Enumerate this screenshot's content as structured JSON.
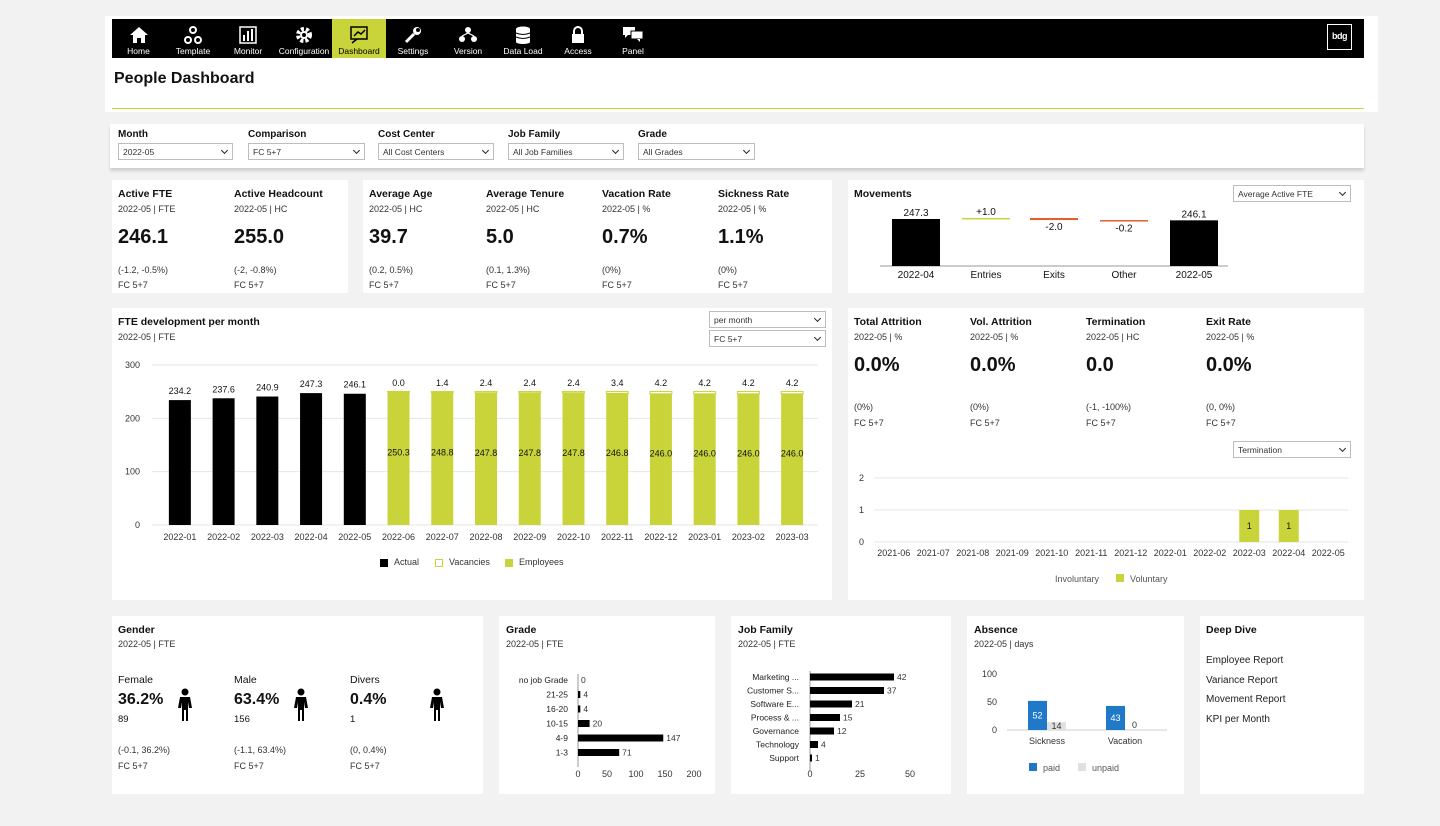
{
  "nav": {
    "items": [
      {
        "label": "Home",
        "icon": "home-icon"
      },
      {
        "label": "Template",
        "icon": "template-icon"
      },
      {
        "label": "Monitor",
        "icon": "monitor-icon"
      },
      {
        "label": "Configuration",
        "icon": "gear-icon"
      },
      {
        "label": "Dashboard",
        "icon": "dashboard-icon",
        "active": true
      },
      {
        "label": "Settings",
        "icon": "wrench-icon"
      },
      {
        "label": "Version",
        "icon": "version-icon"
      },
      {
        "label": "Data Load",
        "icon": "database-icon"
      },
      {
        "label": "Access",
        "icon": "lock-icon"
      },
      {
        "label": "Panel",
        "icon": "chat-icon"
      }
    ],
    "logo_text": "bdg",
    "accent": "#c8d43a"
  },
  "page_title": "People Dashboard",
  "filters": [
    {
      "label": "Month",
      "value": "2022-05"
    },
    {
      "label": "Comparison",
      "value": "FC 5+7"
    },
    {
      "label": "Cost Center",
      "value": "All Cost Centers"
    },
    {
      "label": "Job Family",
      "value": "All Job Families"
    },
    {
      "label": "Grade",
      "value": "All Grades"
    }
  ],
  "kpis": [
    {
      "title": "Active FTE",
      "sub": "2022-05 | FTE",
      "value": "246.1",
      "delta": "(-1.2, -0.5%)",
      "fc": "FC 5+7"
    },
    {
      "title": "Active Headcount",
      "sub": "2022-05 | HC",
      "value": "255.0",
      "delta": "(-2, -0.8%)",
      "fc": "FC 5+7"
    },
    {
      "title": "Average Age",
      "sub": "2022-05 | HC",
      "value": "39.7",
      "delta": "(0.2, 0.5%)",
      "fc": "FC 5+7"
    },
    {
      "title": "Average Tenure",
      "sub": "2022-05 | HC",
      "value": "5.0",
      "delta": "(0.1, 1.3%)",
      "fc": "FC 5+7"
    },
    {
      "title": "Vacation Rate",
      "sub": "2022-05 | %",
      "value": "0.7%",
      "delta": "(0%)",
      "fc": "FC 5+7"
    },
    {
      "title": "Sickness Rate",
      "sub": "2022-05 | %",
      "value": "1.1%",
      "delta": "(0%)",
      "fc": "FC 5+7"
    }
  ],
  "movements": {
    "title": "Movements",
    "select": "Average Active FTE",
    "chart_data": {
      "type": "bar",
      "categories": [
        "2022-04",
        "Entries",
        "Exits",
        "Other",
        "2022-05"
      ],
      "values": [
        247.3,
        1.0,
        -2.0,
        -0.2,
        246.1
      ],
      "labels": [
        "247.3",
        "+1.0",
        "-2.0",
        "-0.2",
        "246.1"
      ]
    }
  },
  "fte_dev": {
    "title": "FTE development per month",
    "sub": "2022-05 | FTE",
    "select1": "per month",
    "select2": "FC 5+7",
    "chart_data": {
      "type": "bar",
      "categories": [
        "2022-01",
        "2022-02",
        "2022-03",
        "2022-04",
        "2022-05",
        "2022-06",
        "2022-07",
        "2022-08",
        "2022-09",
        "2022-10",
        "2022-11",
        "2022-12",
        "2023-01",
        "2023-02",
        "2023-03"
      ],
      "yticks": [
        0,
        100,
        200,
        300
      ],
      "ylim": [
        0,
        300
      ],
      "series": [
        {
          "name": "Actual",
          "values": [
            234.2,
            237.6,
            240.9,
            247.3,
            246.1,
            null,
            null,
            null,
            null,
            null,
            null,
            null,
            null,
            null,
            null
          ]
        },
        {
          "name": "Vacancies",
          "values": [
            null,
            null,
            null,
            null,
            null,
            0.0,
            1.4,
            2.4,
            2.4,
            2.4,
            3.4,
            4.2,
            4.2,
            4.2,
            4.2
          ]
        },
        {
          "name": "Employees",
          "values": [
            null,
            null,
            null,
            null,
            null,
            250.3,
            248.8,
            247.8,
            247.8,
            247.8,
            246.8,
            246.0,
            246.0,
            246.0,
            246.0
          ]
        }
      ],
      "legend": [
        "Actual",
        "Vacancies",
        "Employees"
      ]
    }
  },
  "attrition": [
    {
      "title": "Total Attrition",
      "sub": "2022-05 | %",
      "value": "0.0%",
      "delta": "(0%)",
      "fc": "FC 5+7"
    },
    {
      "title": "Vol. Attrition",
      "sub": "2022-05 | %",
      "value": "0.0%",
      "delta": "(0%)",
      "fc": "FC 5+7"
    },
    {
      "title": "Termination",
      "sub": "2022-05 | HC",
      "value": "0.0",
      "delta": "(-1, -100%)",
      "fc": "FC 5+7"
    },
    {
      "title": "Exit Rate",
      "sub": "2022-05 | %",
      "value": "0.0%",
      "delta": "(0, 0%)",
      "fc": "FC 5+7"
    }
  ],
  "termination": {
    "select": "Termination",
    "chart_data": {
      "type": "bar",
      "categories": [
        "2021-06",
        "2021-07",
        "2021-08",
        "2021-09",
        "2021-10",
        "2021-11",
        "2021-12",
        "2022-01",
        "2022-02",
        "2022-03",
        "2022-04",
        "2022-05"
      ],
      "yticks": [
        0,
        1,
        2
      ],
      "ylim": [
        0,
        2
      ],
      "series": [
        {
          "name": "Involuntary",
          "values": [
            0,
            0,
            0,
            0,
            0,
            0,
            0,
            0,
            0,
            0,
            0,
            0
          ]
        },
        {
          "name": "Voluntary",
          "values": [
            0,
            0,
            0,
            0,
            0,
            0,
            0,
            0,
            0,
            1,
            1,
            0
          ]
        }
      ],
      "legend": [
        "Involuntary",
        "Voluntary"
      ]
    }
  },
  "gender": {
    "title": "Gender",
    "sub": "2022-05 | FTE",
    "items": [
      {
        "label": "Female",
        "pct": "36.2%",
        "n": "89",
        "delta": "(-0.1, 36.2%)",
        "fc": "FC 5+7"
      },
      {
        "label": "Male",
        "pct": "63.4%",
        "n": "156",
        "delta": "(-1.1, 63.4%)",
        "fc": "FC 5+7"
      },
      {
        "label": "Divers",
        "pct": "0.4%",
        "n": "1",
        "delta": "(0, 0.4%)",
        "fc": "FC 5+7"
      }
    ]
  },
  "grade": {
    "title": "Grade",
    "sub": "2022-05 | FTE",
    "chart_data": {
      "type": "bar",
      "orientation": "horizontal",
      "categories": [
        "no job Grade",
        "21-25",
        "16-20",
        "10-15",
        "4-9",
        "1-3"
      ],
      "values": [
        0,
        4,
        4,
        20,
        147,
        71
      ],
      "xticks": [
        0,
        50,
        100,
        150,
        200
      ],
      "xlim": [
        0,
        200
      ]
    }
  },
  "jobfamily": {
    "title": "Job Family",
    "sub": "2022-05 | FTE",
    "chart_data": {
      "type": "bar",
      "orientation": "horizontal",
      "categories": [
        "Marketing ...",
        "Customer S...",
        "Software E...",
        "Process & ...",
        "Governance",
        "Technology",
        "Support"
      ],
      "values": [
        42,
        37,
        21,
        15,
        12,
        4,
        1
      ],
      "xticks": [
        0,
        25,
        50
      ],
      "xlim": [
        0,
        50
      ]
    }
  },
  "absence": {
    "title": "Absence",
    "sub": "2022-05 | days",
    "chart_data": {
      "type": "bar",
      "categories": [
        "Sickness",
        "Vacation"
      ],
      "series": [
        {
          "name": "paid",
          "values": [
            52,
            43
          ]
        },
        {
          "name": "unpaid",
          "values": [
            14,
            0
          ]
        }
      ],
      "yticks": [
        0,
        50,
        100
      ],
      "ylim": [
        0,
        100
      ],
      "legend": [
        "paid",
        "unpaid"
      ]
    }
  },
  "deepdive": {
    "title": "Deep Dive",
    "links": [
      "Employee Report",
      "Variance Report",
      "Movement Report",
      "KPI per Month"
    ]
  },
  "colors": {
    "accent": "#c8d43a",
    "paid": "#1f78c8",
    "unpaid": "#e0e0e0",
    "exit": "#e06030",
    "entry": "#c8d43a"
  }
}
